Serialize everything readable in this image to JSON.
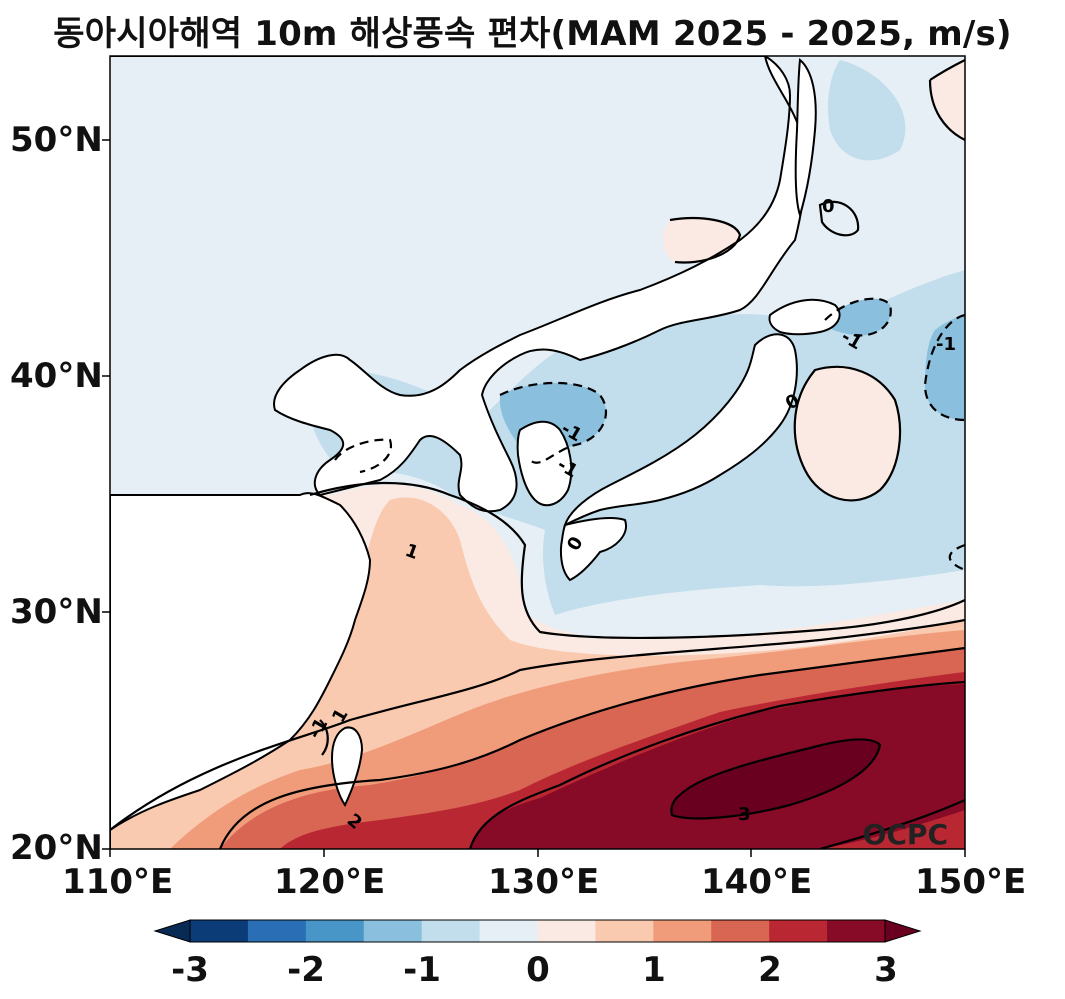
{
  "title": "동아시아해역 10m 해상풍속 편차(MAM 2025 - 2025, m/s)",
  "watermark": "OCPC",
  "map": {
    "extent": {
      "lon": [
        110,
        150
      ],
      "lat": [
        20,
        53.5
      ]
    },
    "x_ticks": [
      "110°E",
      "120°E",
      "130°E",
      "140°E",
      "150°E"
    ],
    "y_ticks": [
      "20°N",
      "30°N",
      "40°N",
      "50°N"
    ],
    "contour_labels": [
      "0",
      "-1",
      "-1",
      "-1",
      "-1",
      "0",
      "0",
      "1",
      "-1",
      "1",
      "2",
      "3",
      "0",
      "1"
    ]
  },
  "colorbar": {
    "ticks": [
      "-3",
      "-2",
      "-1",
      "0",
      "1",
      "2",
      "3"
    ],
    "colors": [
      "#0b3c78",
      "#2a6eb5",
      "#4896c8",
      "#8abfdd",
      "#c2ddec",
      "#e6eff5",
      "#faeae3",
      "#f9c9b0",
      "#f09c7a",
      "#d96553",
      "#b92732",
      "#870a26"
    ],
    "extend_low": "#082a55",
    "extend_high": "#6a0020"
  }
}
